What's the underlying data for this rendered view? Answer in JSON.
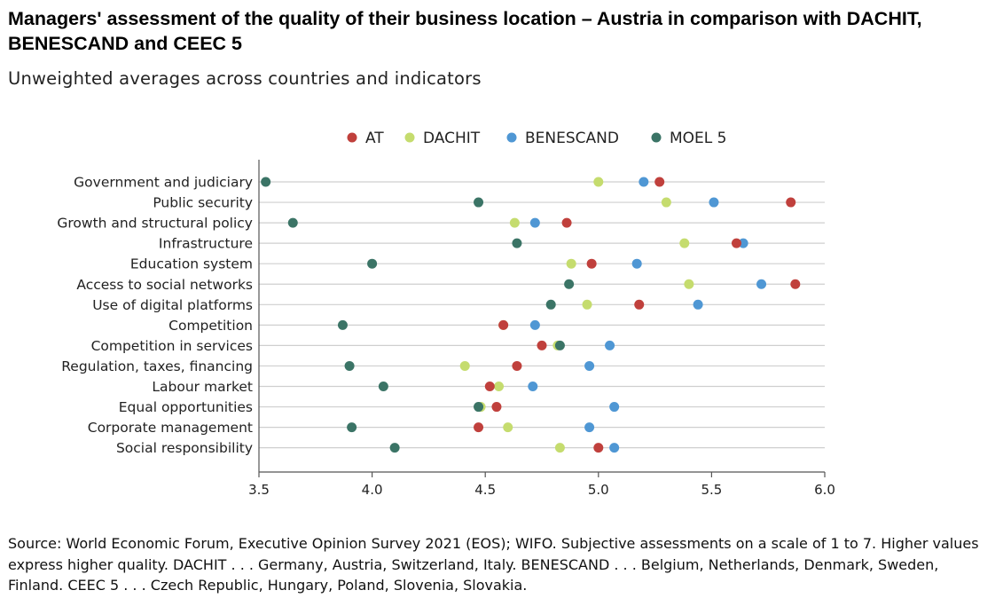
{
  "title": "Managers' assessment of the quality of their business location – Austria in comparison with DACHIT, BENESCAND and CEEC 5",
  "subtitle": "Unweighted averages across countries and indicators",
  "source": "Source: World Economic Forum, Executive Opinion Survey 2021 (EOS); WIFO. Subjective assessments on a scale of 1 to 7. Higher values express higher quality. DACHIT . . . Germany, Austria, Switzerland, Italy. BENESCAND . . . Belgium, Netherlands, Denmark, Sweden, Finland. CEEC 5 . . . Czech Republic, Hungary, Poland, Slovenia, Slovakia.",
  "chart_data": {
    "type": "scatter",
    "orientation": "horizontal dot plot",
    "xlim": [
      3.5,
      6.0
    ],
    "xticks": [
      "3.5",
      "4.0",
      "4.5",
      "5.0",
      "5.5",
      "6.0"
    ],
    "grid": "horizontal lines per category",
    "legend_position": "top",
    "categories": [
      "Government and judiciary",
      "Public security",
      "Growth and structural policy",
      "Infrastructure",
      "Education system",
      "Access to social networks",
      "Use of digital platforms",
      "Competition",
      "Competition in services",
      "Regulation, taxes, financing",
      "Labour market",
      "Equal opportunities",
      "Corporate management",
      "Social responsibility"
    ],
    "series": [
      {
        "name": "AT",
        "color": "#c0403c",
        "values": [
          5.27,
          5.85,
          4.86,
          5.61,
          4.97,
          5.87,
          5.18,
          4.58,
          4.75,
          4.64,
          4.52,
          4.55,
          4.47,
          5.0
        ]
      },
      {
        "name": "DACHIT",
        "color": "#c5dc6e",
        "values": [
          5.0,
          5.3,
          4.63,
          5.38,
          4.88,
          5.4,
          4.95,
          4.58,
          4.82,
          4.41,
          4.56,
          4.48,
          4.6,
          4.83
        ]
      },
      {
        "name": "BENESCAND",
        "color": "#4f97d4",
        "values": [
          5.2,
          5.51,
          4.72,
          5.64,
          5.17,
          5.72,
          5.44,
          4.72,
          5.05,
          4.96,
          4.71,
          5.07,
          4.96,
          5.07
        ]
      },
      {
        "name": "MOEL 5",
        "color": "#3b7466",
        "values": [
          3.53,
          4.47,
          3.65,
          4.64,
          4.0,
          4.87,
          4.79,
          3.87,
          4.83,
          3.9,
          4.05,
          4.47,
          3.91,
          4.1
        ]
      }
    ]
  }
}
